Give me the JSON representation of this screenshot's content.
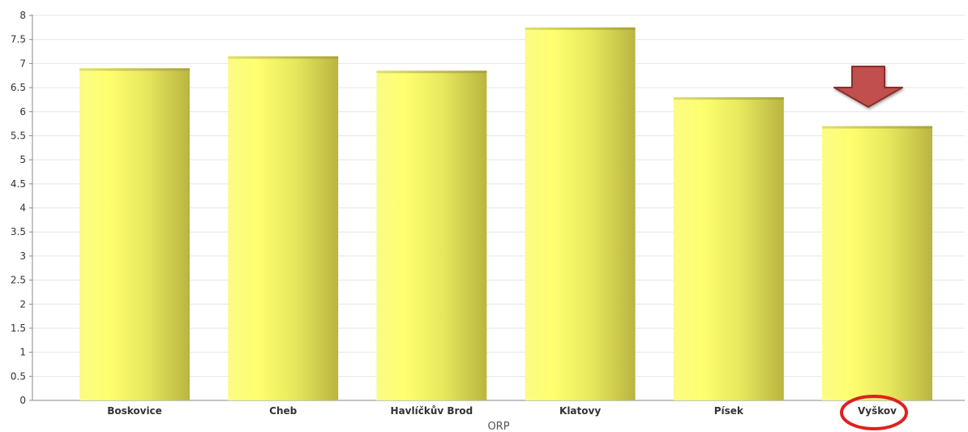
{
  "chart_data": {
    "type": "bar",
    "title": "",
    "xlabel": "ORP",
    "ylabel": "",
    "categories": [
      "Boskovice",
      "Cheb",
      "Havlíčkův Brod",
      "Klatovy",
      "Písek",
      "Vyškov"
    ],
    "values": [
      6.9,
      7.15,
      6.85,
      7.75,
      6.3,
      5.7
    ],
    "ylim": [
      0,
      8
    ],
    "yticks": [
      "0",
      "0.5",
      "1",
      "1.5",
      "2",
      "2.5",
      "3",
      "3.5",
      "4",
      "4.5",
      "5",
      "5.5",
      "6",
      "6.5",
      "7",
      "7.5",
      "8"
    ],
    "grid": true,
    "bar_color": "#f4f45a",
    "reference_line": {
      "value": 5.72,
      "color": "#c0504d"
    },
    "highlight": {
      "category": "Vyškov",
      "arrow_color": "#c0504d",
      "circle_color": "#e02020"
    }
  }
}
